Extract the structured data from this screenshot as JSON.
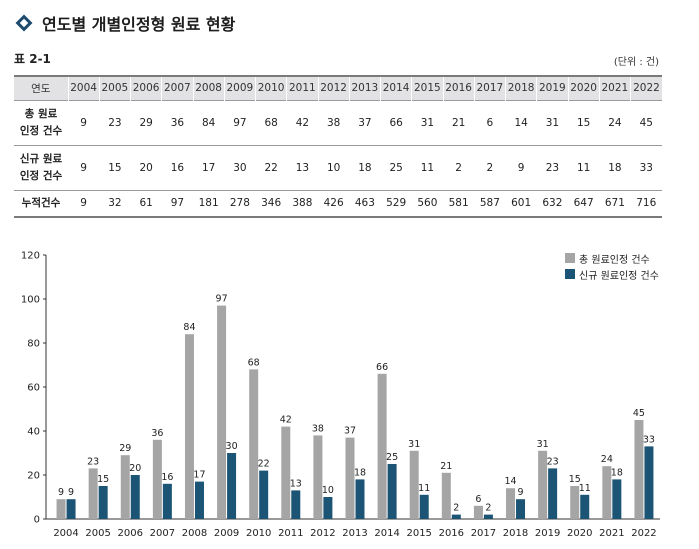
{
  "heading": {
    "title": "연도별 개별인정형 원료 현황"
  },
  "table": {
    "label": "표 2-1",
    "unit": "(단위 : 건)",
    "year_header": "연도",
    "rows": [
      {
        "label_line1": "총 원료",
        "label_line2": "인정 건수",
        "values": [
          "9",
          "23",
          "29",
          "36",
          "84",
          "97",
          "68",
          "42",
          "38",
          "37",
          "66",
          "31",
          "21",
          "6",
          "14",
          "31",
          "15",
          "24",
          "45"
        ]
      },
      {
        "label_line1": "신규 원료",
        "label_line2": "인정 건수",
        "values": [
          "9",
          "15",
          "20",
          "16",
          "17",
          "30",
          "22",
          "13",
          "10",
          "18",
          "25",
          "11",
          "2",
          "2",
          "9",
          "23",
          "11",
          "18",
          "33"
        ]
      },
      {
        "label_line1": "누적건수",
        "label_line2": "",
        "values": [
          "9",
          "32",
          "61",
          "97",
          "181",
          "278",
          "346",
          "388",
          "426",
          "463",
          "529",
          "560",
          "581",
          "587",
          "601",
          "632",
          "647",
          "671",
          "716"
        ]
      }
    ]
  },
  "chart_data": {
    "type": "bar",
    "categories": [
      "2004",
      "2005",
      "2006",
      "2007",
      "2008",
      "2009",
      "2010",
      "2011",
      "2012",
      "2013",
      "2014",
      "2015",
      "2016",
      "2017",
      "2018",
      "2019",
      "2020",
      "2021",
      "2022"
    ],
    "series": [
      {
        "name": "총 원료인정 건수",
        "color": "#a5a5a5",
        "values": [
          9,
          23,
          29,
          36,
          84,
          97,
          68,
          42,
          38,
          37,
          66,
          31,
          21,
          6,
          14,
          31,
          15,
          24,
          45
        ]
      },
      {
        "name": "신규 원료인정 건수",
        "color": "#1c5475",
        "values": [
          9,
          15,
          20,
          16,
          17,
          30,
          22,
          13,
          10,
          18,
          25,
          11,
          2,
          2,
          9,
          23,
          11,
          18,
          33
        ]
      }
    ],
    "ylim": [
      0,
      120
    ],
    "yticks": [
      0,
      20,
      40,
      60,
      80,
      100,
      120
    ],
    "grid": false,
    "legend": "top-right"
  }
}
